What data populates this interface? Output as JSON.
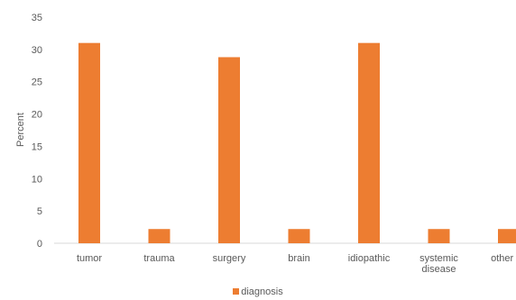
{
  "chart_data": {
    "type": "bar",
    "title": "",
    "xlabel": "",
    "ylabel": "Percent",
    "ylim": [
      0,
      35
    ],
    "yticks": [
      0,
      5,
      10,
      15,
      20,
      25,
      30,
      35
    ],
    "grid": false,
    "legend_position": "bottom",
    "categories": [
      "tumor",
      "trauma",
      "surgery",
      "brain",
      "idiopathic",
      "systemic disease",
      "other ca"
    ],
    "category_lines": [
      [
        "tumor"
      ],
      [
        "trauma"
      ],
      [
        "surgery"
      ],
      [
        "brain"
      ],
      [
        "idiopathic"
      ],
      [
        "systemic",
        "disease"
      ],
      [
        "other ca"
      ]
    ],
    "series": [
      {
        "name": "diagnosis",
        "values": [
          31,
          2.2,
          28.8,
          2.2,
          31,
          2.2,
          2.2
        ],
        "color": "#ED7D31"
      }
    ]
  }
}
